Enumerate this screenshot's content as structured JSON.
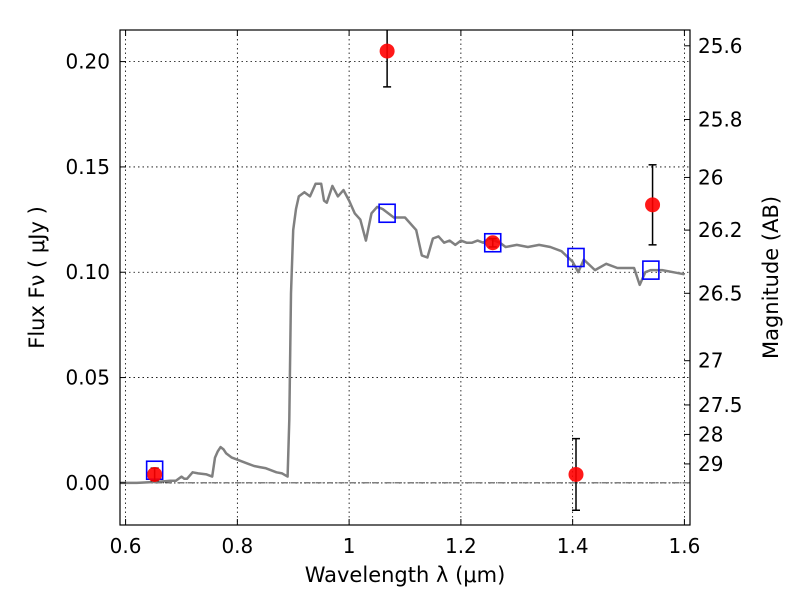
{
  "chart_data": {
    "type": "line",
    "xlabel": "Wavelength  λ (μm)",
    "ylabel": "Flux  Fν  ( μJy )",
    "y2label": "Magnitude (AB)",
    "xlim": [
      0.59,
      1.61
    ],
    "ylim": [
      -0.02,
      0.215
    ],
    "x_ticks": [
      0.6,
      0.8,
      1.0,
      1.2,
      1.4,
      1.6
    ],
    "x_tick_labels": [
      "0.6",
      "0.8",
      "1",
      "1.2",
      "1.4",
      "1.6"
    ],
    "y_ticks": [
      0.0,
      0.05,
      0.1,
      0.15,
      0.2
    ],
    "y_tick_labels": [
      "0.00",
      "0.05",
      "0.10",
      "0.15",
      "0.20"
    ],
    "mag_ticks": [
      {
        "flux": 0.2075,
        "label": "25.6"
      },
      {
        "flux": 0.1725,
        "label": "25.8"
      },
      {
        "flux": 0.145,
        "label": "26"
      },
      {
        "flux": 0.12,
        "label": "26.2"
      },
      {
        "flux": 0.09,
        "label": "26.5"
      },
      {
        "flux": 0.058,
        "label": "27"
      },
      {
        "flux": 0.037,
        "label": "27.5"
      },
      {
        "flux": 0.023,
        "label": "28"
      },
      {
        "flux": 0.009,
        "label": "29"
      }
    ],
    "grid": true,
    "zero_line": true,
    "model_color": "#808080",
    "model_spectrum": {
      "x": [
        0.59,
        0.62,
        0.66,
        0.68,
        0.69,
        0.7,
        0.705,
        0.71,
        0.72,
        0.73,
        0.745,
        0.755,
        0.76,
        0.765,
        0.77,
        0.775,
        0.78,
        0.79,
        0.8,
        0.81,
        0.82,
        0.83,
        0.84,
        0.85,
        0.86,
        0.87,
        0.88,
        0.89,
        0.893,
        0.896,
        0.9,
        0.905,
        0.91,
        0.92,
        0.93,
        0.94,
        0.95,
        0.955,
        0.96,
        0.97,
        0.98,
        0.99,
        1.0,
        1.01,
        1.02,
        1.03,
        1.04,
        1.05,
        1.06,
        1.07,
        1.08,
        1.09,
        1.1,
        1.12,
        1.13,
        1.14,
        1.15,
        1.16,
        1.17,
        1.18,
        1.19,
        1.2,
        1.21,
        1.22,
        1.23,
        1.24,
        1.25,
        1.27,
        1.28,
        1.3,
        1.32,
        1.34,
        1.36,
        1.38,
        1.4,
        1.41,
        1.42,
        1.44,
        1.46,
        1.48,
        1.5,
        1.51,
        1.52,
        1.53,
        1.54,
        1.55,
        1.56,
        1.58,
        1.6
      ],
      "y": [
        0.0,
        0.0,
        0.0005,
        0.001,
        0.001,
        0.003,
        0.002,
        0.002,
        0.005,
        0.0045,
        0.004,
        0.003,
        0.012,
        0.015,
        0.017,
        0.016,
        0.014,
        0.012,
        0.011,
        0.01,
        0.009,
        0.008,
        0.0075,
        0.007,
        0.006,
        0.005,
        0.0045,
        0.003,
        0.03,
        0.09,
        0.12,
        0.13,
        0.136,
        0.138,
        0.136,
        0.142,
        0.142,
        0.134,
        0.133,
        0.141,
        0.136,
        0.139,
        0.134,
        0.128,
        0.125,
        0.115,
        0.128,
        0.131,
        0.13,
        0.128,
        0.126,
        0.126,
        0.126,
        0.12,
        0.108,
        0.107,
        0.116,
        0.117,
        0.114,
        0.115,
        0.113,
        0.115,
        0.114,
        0.114,
        0.115,
        0.114,
        0.116,
        0.114,
        0.112,
        0.113,
        0.112,
        0.113,
        0.112,
        0.11,
        0.105,
        0.1,
        0.106,
        0.101,
        0.104,
        0.102,
        0.102,
        0.102,
        0.094,
        0.1,
        0.101,
        0.101,
        0.101,
        0.1,
        0.099
      ]
    },
    "model_photometry": {
      "color": "#0000ff",
      "points": [
        {
          "x": 0.652,
          "y": 0.006
        },
        {
          "x": 1.068,
          "y": 0.128
        },
        {
          "x": 1.257,
          "y": 0.114
        },
        {
          "x": 1.406,
          "y": 0.107
        },
        {
          "x": 1.54,
          "y": 0.101
        }
      ]
    },
    "observed": {
      "color": "#ff0000",
      "points": [
        {
          "x": 0.652,
          "y": 0.004,
          "err": 0.003
        },
        {
          "x": 1.068,
          "y": 0.205,
          "err": 0.017
        },
        {
          "x": 1.257,
          "y": 0.114,
          "err": 0.002
        },
        {
          "x": 1.406,
          "y": 0.004,
          "err": 0.017
        },
        {
          "x": 1.543,
          "y": 0.132,
          "err": 0.019
        }
      ]
    }
  }
}
